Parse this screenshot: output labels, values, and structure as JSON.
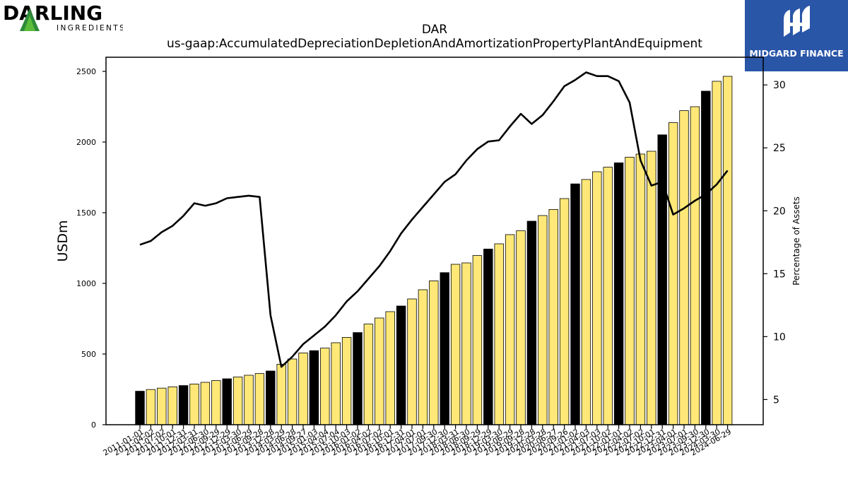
{
  "logos": {
    "left_brand": "DARLING",
    "left_sub": "INGREDIENTS",
    "right_brand": "MIDGARD FINANCE"
  },
  "colors": {
    "bar_highlight": "#000000",
    "bar_default": "#ffe877",
    "bar_edge": "#000000",
    "line": "#000000",
    "right_logo_bg": "#2a56a8",
    "left_logo_green": "#2e8b3a"
  },
  "chart_data": {
    "type": "bar",
    "title": "DAR",
    "subtitle": "us-gaap:AccumulatedDepreciationDepletionAndAmortizationPropertyPlantAndEquipment",
    "ylabel": "USDm",
    "y2label": "Percentage of Assets",
    "ylim": [
      0,
      2600
    ],
    "y2lim": [
      3,
      32.2
    ],
    "yticks": [
      0,
      500,
      1000,
      1500,
      2000,
      2500
    ],
    "y2ticks": [
      5,
      10,
      15,
      20,
      25,
      30
    ],
    "grid": false,
    "categories": [
      "2011-01-01",
      "2011-04-02",
      "2011-07-02",
      "2011-10-01",
      "2011-12-31",
      "2012-03-31",
      "2012-06-30",
      "2012-09-29",
      "2012-12-29",
      "2013-03-30",
      "2013-06-29",
      "2013-09-28",
      "2013-12-28",
      "2014-03-29",
      "2014-06-28",
      "2014-09-27",
      "2015-01-03",
      "2015-04-04",
      "2015-07-04",
      "2015-10-03",
      "2016-01-02",
      "2016-04-02",
      "2016-07-02",
      "2016-10-01",
      "2016-12-31",
      "2017-04-01",
      "2017-07-01",
      "2017-09-30",
      "2017-12-30",
      "2018-03-31",
      "2018-06-30",
      "2018-09-29",
      "2018-12-29",
      "2019-03-30",
      "2019-06-29",
      "2019-09-28",
      "2019-12-28",
      "2020-03-28",
      "2020-06-27",
      "2020-09-26",
      "2021-01-02",
      "2021-04-03",
      "2021-07-03",
      "2021-10-02",
      "2022-01-01",
      "2022-04-02",
      "2022-07-02",
      "2022-10-01",
      "2022-12-31",
      "2023-04-01",
      "2023-07-01",
      "2023-09-30",
      "2023-12-30",
      "2024-03-30",
      "2024-06-29"
    ],
    "series": [
      {
        "type": "bar",
        "values": [
          237,
          249,
          259,
          268,
          277,
          288,
          300,
          312,
          325,
          338,
          350,
          362,
          380,
          428,
          465,
          508,
          524,
          542,
          580,
          618,
          652,
          712,
          755,
          800,
          840,
          890,
          955,
          1018,
          1076,
          1135,
          1145,
          1197,
          1243,
          1280,
          1345,
          1372,
          1440,
          1480,
          1523,
          1600,
          1704,
          1735,
          1790,
          1822,
          1853,
          1893,
          1915,
          1935,
          2051,
          2137,
          2222,
          2250,
          2360,
          2430,
          2465
        ],
        "highlight": [
          true,
          false,
          false,
          false,
          true,
          false,
          false,
          false,
          true,
          false,
          false,
          false,
          true,
          false,
          false,
          false,
          true,
          false,
          false,
          false,
          true,
          false,
          false,
          false,
          true,
          false,
          false,
          false,
          true,
          false,
          false,
          false,
          true,
          false,
          false,
          false,
          true,
          false,
          false,
          false,
          true,
          false,
          false,
          false,
          true,
          false,
          false,
          false,
          true,
          false,
          false,
          false,
          true,
          false,
          false
        ]
      },
      {
        "type": "line",
        "axis": "right",
        "values": [
          17.3,
          17.6,
          18.3,
          18.8,
          19.6,
          20.6,
          20.4,
          20.6,
          21.0,
          21.1,
          21.2,
          21.1,
          11.7,
          7.6,
          8.4,
          9.4,
          10.1,
          10.8,
          11.7,
          12.8,
          13.6,
          14.6,
          15.6,
          16.8,
          18.2,
          19.3,
          20.3,
          21.3,
          22.3,
          22.9,
          24.0,
          24.9,
          25.5,
          25.6,
          26.7,
          27.7,
          26.9,
          27.6,
          28.7,
          29.9,
          30.4,
          31.0,
          30.7,
          30.7,
          30.3,
          28.6,
          24.0,
          22.0,
          22.3,
          19.7,
          20.2,
          20.8,
          21.3,
          22.1,
          23.2
        ]
      }
    ]
  }
}
